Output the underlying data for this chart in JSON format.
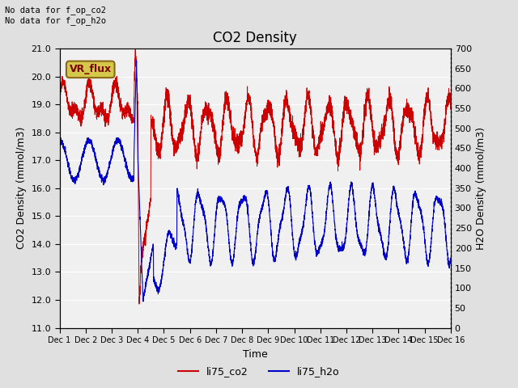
{
  "title": "CO2 Density",
  "xlabel": "Time",
  "ylabel_left": "CO2 Density (mmol/m3)",
  "ylabel_right": "H2O Density (mmol/m3)",
  "top_left_text": "No data for f_op_co2\nNo data for f_op_h2o",
  "vr_flux_label": "VR_flux",
  "ylim_left": [
    11.0,
    21.0
  ],
  "ylim_right": [
    0,
    700
  ],
  "yticks_left": [
    11.0,
    12.0,
    13.0,
    14.0,
    15.0,
    16.0,
    17.0,
    18.0,
    19.0,
    20.0,
    21.0
  ],
  "yticks_right": [
    0,
    50,
    100,
    150,
    200,
    250,
    300,
    350,
    400,
    450,
    500,
    550,
    600,
    650,
    700
  ],
  "xtick_labels": [
    "Dec 1",
    "Dec 2",
    "Dec 3",
    "Dec 4",
    "Dec 5",
    "Dec 6",
    "Dec 7",
    "Dec 8",
    "Dec 9",
    "Dec 10",
    "Dec 11",
    "Dec 12",
    "Dec 13",
    "Dec 14",
    "Dec 15",
    "Dec 16"
  ],
  "co2_color": "#cc0000",
  "h2o_color": "#0000cc",
  "legend_co2": "li75_co2",
  "legend_h2o": "li75_h2o",
  "fig_bg_color": "#e0e0e0",
  "plot_bg_color": "#f0f0f0",
  "grid_color": "#ffffff",
  "title_fontsize": 12,
  "label_fontsize": 9,
  "tick_fontsize": 8,
  "fig_width": 6.4,
  "fig_height": 4.8,
  "fig_dpi": 100
}
